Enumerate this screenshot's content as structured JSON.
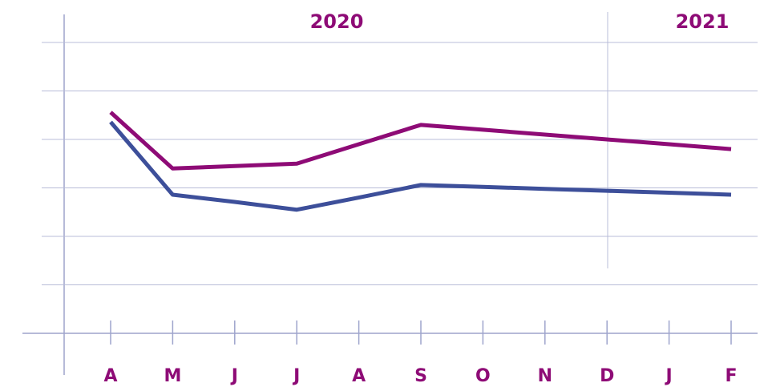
{
  "chart_data": {
    "type": "line",
    "annotations": [
      "2020",
      "2021"
    ],
    "categories": [
      "A",
      "M",
      "J",
      "J",
      "A",
      "S",
      "O",
      "N",
      "D",
      "J",
      "F"
    ],
    "series": [
      {
        "color": "#8e0b76",
        "values": [
          4.56,
          3.4,
          3.45,
          3.5,
          3.9,
          4.3,
          4.2,
          4.1,
          4.0,
          3.9,
          3.8
        ]
      },
      {
        "color": "#3d4f9a",
        "values": [
          4.36,
          2.86,
          2.71,
          2.55,
          2.8,
          3.06,
          3.02,
          2.98,
          2.94,
          2.9,
          2.86
        ]
      }
    ],
    "ylim": [
      0,
      6
    ],
    "yticks": [
      1,
      2,
      3,
      4,
      5,
      6
    ],
    "grid": true,
    "label_color": "#8e0b76"
  }
}
